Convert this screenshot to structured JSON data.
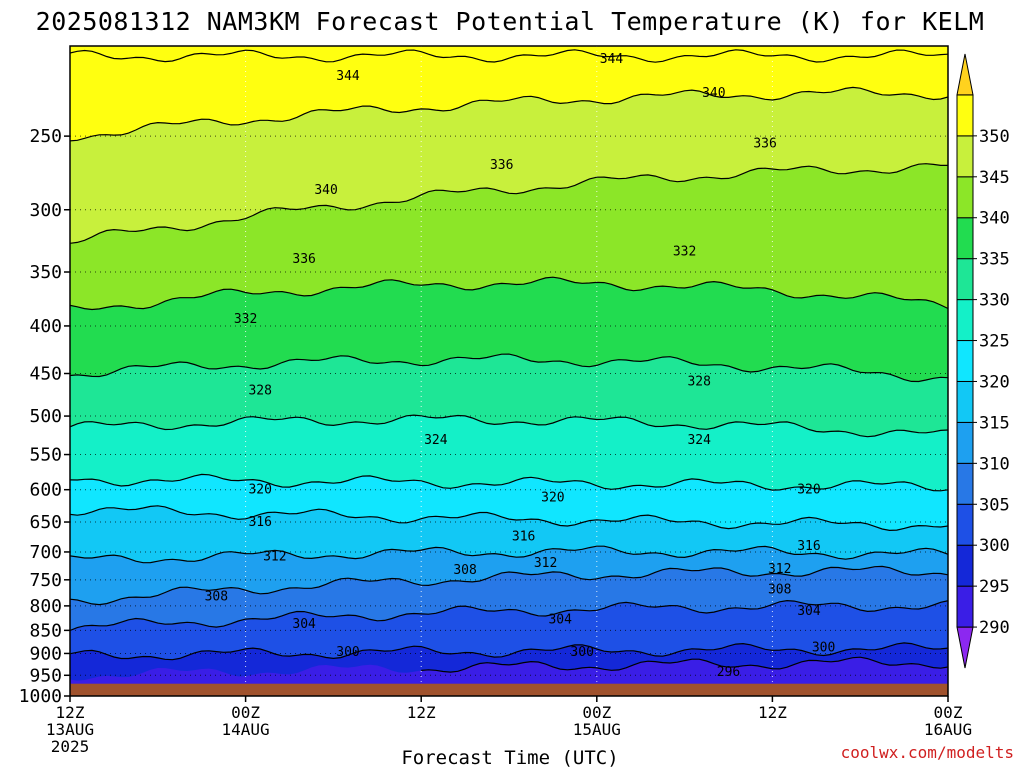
{
  "chart_data": {
    "type": "time-height contour",
    "title": "2025081312 NAM3KM Forecast Potential Temperature (K) for KELM",
    "xlabel": "Forecast Time (UTC)",
    "x_ticks": [
      {
        "hour": 0,
        "line1": "12Z",
        "line2": "13AUG",
        "line3": "2025"
      },
      {
        "hour": 12,
        "line1": "00Z",
        "line2": "14AUG",
        "line3": ""
      },
      {
        "hour": 24,
        "line1": "12Z",
        "line2": "",
        "line3": ""
      },
      {
        "hour": 36,
        "line1": "00Z",
        "line2": "15AUG",
        "line3": ""
      },
      {
        "hour": 48,
        "line1": "12Z",
        "line2": "",
        "line3": ""
      },
      {
        "hour": 60,
        "line1": "00Z",
        "line2": "16AUG",
        "line3": ""
      }
    ],
    "x_range_hours": [
      0,
      60
    ],
    "y_ticks_hpa": [
      250,
      300,
      350,
      400,
      450,
      500,
      550,
      600,
      650,
      700,
      750,
      800,
      850,
      900,
      950,
      1000
    ],
    "y_range_hpa": [
      200,
      1000
    ],
    "y_scale": "log-pressure",
    "colorbar": {
      "levels": [
        290,
        295,
        300,
        305,
        310,
        315,
        320,
        325,
        330,
        335,
        340,
        345,
        350
      ],
      "labels": [
        "290",
        "295",
        "300",
        "305",
        "310",
        "315",
        "320",
        "325",
        "330",
        "335",
        "340",
        "345",
        "350"
      ],
      "colors": [
        "#8c28f0",
        "#3a1ee6",
        "#1428d8",
        "#1e50e6",
        "#2878e6",
        "#1ea0f0",
        "#12c8f5",
        "#10e6ff",
        "#14f0c8",
        "#1ee696",
        "#22dc50",
        "#8ce628",
        "#c8f03c",
        "#ffff10",
        "#ffd21e"
      ]
    },
    "contour_levels": [
      296,
      300,
      304,
      308,
      312,
      316,
      320,
      324,
      328,
      332,
      336,
      340,
      344
    ],
    "contour_pressure_at_start_mid_end": {
      "296": [
        null,
        930,
        920
      ],
      "300": [
        905,
        895,
        890
      ],
      "304": [
        845,
        810,
        800
      ],
      "308": [
        790,
        745,
        735
      ],
      "312": [
        715,
        700,
        705
      ],
      "316": [
        630,
        645,
        655
      ],
      "320": [
        585,
        590,
        595
      ],
      "324": [
        515,
        505,
        525
      ],
      "328": [
        450,
        435,
        455
      ],
      "332": [
        385,
        360,
        380
      ],
      "336": [
        325,
        285,
        270
      ],
      "340": [
        250,
        230,
        225
      ],
      "344": [
        205,
        205,
        205
      ]
    },
    "contour_labels": [
      {
        "text": "344",
        "hour": 19,
        "hpa": 215
      },
      {
        "text": "344",
        "hour": 37,
        "hpa": 206
      },
      {
        "text": "340",
        "hour": 44,
        "hpa": 224
      },
      {
        "text": "340",
        "hour": 17.5,
        "hpa": 285
      },
      {
        "text": "336",
        "hour": 29.5,
        "hpa": 268
      },
      {
        "text": "336",
        "hour": 47.5,
        "hpa": 254
      },
      {
        "text": "336",
        "hour": 16,
        "hpa": 338
      },
      {
        "text": "332",
        "hour": 42,
        "hpa": 332
      },
      {
        "text": "332",
        "hour": 12,
        "hpa": 392
      },
      {
        "text": "328",
        "hour": 13,
        "hpa": 468
      },
      {
        "text": "328",
        "hour": 43,
        "hpa": 458
      },
      {
        "text": "324",
        "hour": 25,
        "hpa": 529
      },
      {
        "text": "324",
        "hour": 43,
        "hpa": 529
      },
      {
        "text": "320",
        "hour": 13,
        "hpa": 598
      },
      {
        "text": "320",
        "hour": 33,
        "hpa": 610
      },
      {
        "text": "320",
        "hour": 50.5,
        "hpa": 598
      },
      {
        "text": "316",
        "hour": 13,
        "hpa": 648
      },
      {
        "text": "316",
        "hour": 31,
        "hpa": 672
      },
      {
        "text": "316",
        "hour": 50.5,
        "hpa": 688
      },
      {
        "text": "312",
        "hour": 14,
        "hpa": 706
      },
      {
        "text": "312",
        "hour": 32.5,
        "hpa": 718
      },
      {
        "text": "312",
        "hour": 48.5,
        "hpa": 728
      },
      {
        "text": "308",
        "hour": 27,
        "hpa": 730
      },
      {
        "text": "308",
        "hour": 48.5,
        "hpa": 766
      },
      {
        "text": "308",
        "hour": 10,
        "hpa": 780
      },
      {
        "text": "304",
        "hour": 16,
        "hpa": 835
      },
      {
        "text": "304",
        "hour": 33.5,
        "hpa": 825
      },
      {
        "text": "304",
        "hour": 50.5,
        "hpa": 808
      },
      {
        "text": "300",
        "hour": 19,
        "hpa": 895
      },
      {
        "text": "300",
        "hour": 35,
        "hpa": 895
      },
      {
        "text": "300",
        "hour": 51.5,
        "hpa": 885
      },
      {
        "text": "296",
        "hour": 45,
        "hpa": 940
      }
    ],
    "surface_pressure_hpa": 970,
    "surface_fill": "#a0522d",
    "grid": "dotted",
    "credit": "coolwx.com/modelts"
  }
}
